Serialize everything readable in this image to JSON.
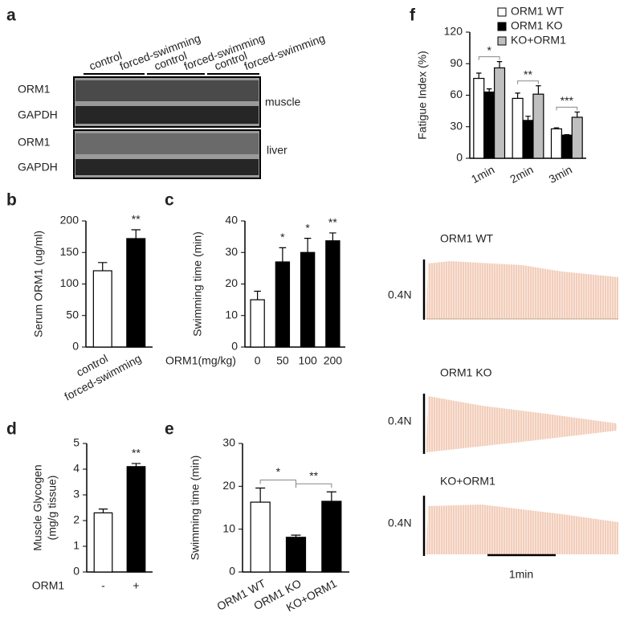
{
  "chart_data": [
    {
      "panel": "b",
      "type": "bar",
      "ylabel": "Serum ORM1 (ug/ml)",
      "categories": [
        "control",
        "forced-swimming"
      ],
      "values": [
        121,
        172
      ],
      "errors": [
        13,
        14
      ],
      "colors": [
        "#ffffff",
        "#000000"
      ],
      "annotations": [
        null,
        "**"
      ],
      "ylim": [
        0,
        200
      ],
      "yticks": [
        0,
        50,
        100,
        150,
        200
      ]
    },
    {
      "panel": "c",
      "type": "bar",
      "ylabel": "Swimming time (min)",
      "xlabel": "ORM1(mg/kg)",
      "categories": [
        "0",
        "50",
        "100",
        "200"
      ],
      "values": [
        15,
        27,
        30,
        33.7
      ],
      "errors": [
        2.7,
        4.5,
        4.5,
        2.5
      ],
      "colors": [
        "#ffffff",
        "#000000",
        "#000000",
        "#000000"
      ],
      "annotations": [
        null,
        "*",
        "*",
        "**"
      ],
      "ylim": [
        0,
        40
      ],
      "yticks": [
        0,
        10,
        20,
        30,
        40
      ]
    },
    {
      "panel": "d",
      "type": "bar",
      "ylabel": [
        "Muscle Glycogen",
        "(mg/g tissue)"
      ],
      "xlabel": "ORM1",
      "categories": [
        "-",
        "+"
      ],
      "values": [
        2.3,
        4.1
      ],
      "errors": [
        0.15,
        0.12
      ],
      "colors": [
        "#ffffff",
        "#000000"
      ],
      "annotations": [
        null,
        "**"
      ],
      "ylim": [
        0,
        5
      ],
      "yticks": [
        0,
        1,
        2,
        3,
        4,
        5
      ]
    },
    {
      "panel": "e",
      "type": "bar",
      "ylabel": "Swimming time (min)",
      "categories": [
        "ORM1 WT",
        "ORM1 KO",
        "KO+ORM1"
      ],
      "values": [
        16.3,
        8.1,
        16.5
      ],
      "errors": [
        3.3,
        0.5,
        2.2
      ],
      "colors": [
        "#ffffff",
        "#000000",
        "#000000"
      ],
      "brackets": [
        "*",
        "**"
      ],
      "ylim": [
        0,
        30
      ],
      "yticks": [
        0,
        10,
        20,
        30
      ]
    },
    {
      "panel": "f",
      "type": "grouped_bar",
      "ylabel": "Fatigue Index (%)",
      "categories": [
        "1min",
        "2min",
        "3min"
      ],
      "series": [
        {
          "name": "ORM1 WT",
          "color": "#ffffff",
          "values": [
            76,
            57,
            28
          ],
          "errors": [
            5,
            5,
            1
          ]
        },
        {
          "name": "ORM1 KO",
          "color": "#000000",
          "values": [
            63,
            36,
            22
          ],
          "errors": [
            3,
            4,
            0.5
          ]
        },
        {
          "name": "KO+ORM1",
          "color": "#bfbfbf",
          "values": [
            86,
            61,
            39
          ],
          "errors": [
            6,
            8,
            5
          ]
        }
      ],
      "annotations": [
        "*",
        "**",
        "***"
      ],
      "ylim": [
        0,
        120
      ],
      "yticks": [
        0,
        30,
        60,
        90,
        120
      ]
    }
  ],
  "blot": {
    "panel": "a",
    "lanes": [
      "control",
      "forced-swimming",
      "control",
      "forced-swimming",
      "control",
      "forced-swimming"
    ],
    "bands": [
      [
        "ORM1",
        "GAPDH"
      ],
      [
        "ORM1",
        "GAPDH"
      ]
    ],
    "tissues": [
      "muscle",
      "liver"
    ]
  },
  "traces": {
    "items": [
      {
        "label": "ORM1 WT",
        "scale": "0.4N"
      },
      {
        "label": "ORM1 KO",
        "scale": "0.4N"
      },
      {
        "label": "KO+ORM1",
        "scale": "0.4N"
      }
    ],
    "time_scale": "1min"
  }
}
